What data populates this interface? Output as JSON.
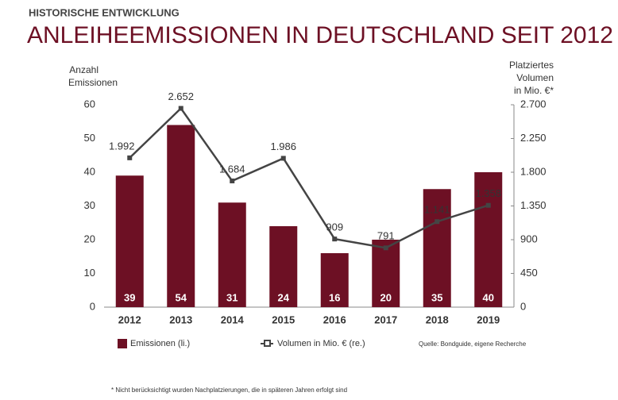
{
  "chart_data": {
    "type": "bar",
    "kicker": "HISTORISCHE ENTWICKLUNG",
    "title": "ANLEIHEEMISSIONEN IN DEUTSCHLAND SEIT 2012",
    "y_label": [
      "Anzahl",
      "Emissionen"
    ],
    "y2_label": [
      "Platziertes",
      "Volumen",
      "in Mio. €*"
    ],
    "categories": [
      "2012",
      "2013",
      "2014",
      "2015",
      "2016",
      "2017",
      "2018",
      "2019"
    ],
    "series": [
      {
        "name": "Emissionen (li.)",
        "type": "bar",
        "color": "#6d1024",
        "values": [
          39,
          54,
          31,
          24,
          16,
          20,
          35,
          40
        ]
      },
      {
        "name": "Volumen in Mio. € (re.)",
        "type": "line",
        "axis": "y2",
        "color": "#444444",
        "values": [
          1992,
          2652,
          1684,
          1986,
          909,
          791,
          1141,
          1358
        ],
        "value_labels": [
          "1.992",
          "2.652",
          "1.684",
          "1.986",
          "909",
          "791",
          "1.141",
          "1.358"
        ]
      }
    ],
    "ylim": [
      0,
      60
    ],
    "yticks": [
      0,
      10,
      20,
      30,
      40,
      50,
      60
    ],
    "y2lim": [
      0,
      2700
    ],
    "y2ticks": [
      0,
      450,
      900,
      {
        "value": 1350,
        "label": "1.350"
      },
      {
        "value": 1800,
        "label": "1.800"
      },
      {
        "value": 2250,
        "label": "2.250"
      },
      {
        "value": 2700,
        "label": "2.700"
      }
    ],
    "grid": false,
    "source": "Quelle: Bondguide, eigene Recherche",
    "footnote": "* Nicht berücksichtigt wurden Nachplatzierungen, die in späteren Jahren erfolgt sind"
  }
}
